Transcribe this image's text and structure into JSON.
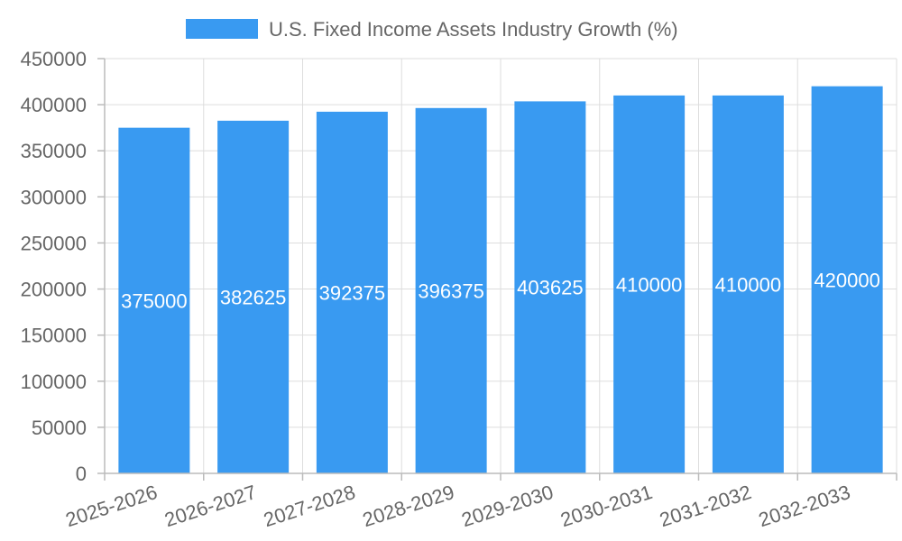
{
  "chart_data": {
    "type": "bar",
    "categories": [
      "2025-2026",
      "2026-2027",
      "2027-2028",
      "2028-2029",
      "2029-2030",
      "2030-2031",
      "2031-2032",
      "2032-2033"
    ],
    "series": [
      {
        "name": "U.S. Fixed Income Assets Industry Growth (%)",
        "values": [
          375000,
          382625,
          392375,
          396375,
          403625,
          410000,
          410000,
          420000
        ],
        "color": "#399af1"
      }
    ],
    "ylim": [
      0,
      450000
    ],
    "yticks": [
      "0",
      "50000",
      "100000",
      "150000",
      "200000",
      "250000",
      "300000",
      "350000",
      "400000",
      "450000"
    ],
    "grid": true,
    "legend_position": "top-center",
    "data_labels": true
  }
}
